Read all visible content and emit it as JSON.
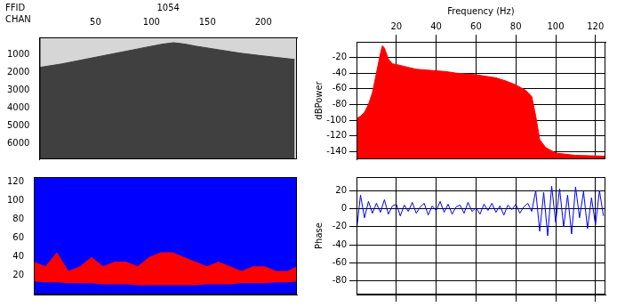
{
  "chart_data": [
    {
      "type": "area",
      "title": "1054",
      "x_label": "CHAN",
      "annotations": [
        {
          "text": "FFID"
        }
      ],
      "x": [
        0,
        20,
        40,
        60,
        80,
        100,
        110,
        120,
        130,
        140,
        160,
        180,
        200,
        228
      ],
      "values": [
        1700,
        1500,
        1250,
        1000,
        750,
        500,
        380,
        300,
        380,
        500,
        700,
        900,
        1050,
        1250
      ],
      "color": "#404040",
      "xlim": [
        0,
        230
      ],
      "xticks": [
        50,
        100,
        150,
        200
      ],
      "ylim": [
        0,
        6900
      ],
      "yticks": [
        1000,
        2000,
        3000,
        4000,
        5000,
        6000
      ],
      "grid": false,
      "tick_labels": true
    },
    {
      "type": "area",
      "x": [
        0,
        10,
        20,
        30,
        40,
        50,
        60,
        70,
        80,
        90,
        100,
        110,
        120,
        130,
        140,
        150,
        160,
        170,
        180,
        190,
        200,
        210,
        220,
        228
      ],
      "values": [
        35,
        30,
        45,
        25,
        30,
        40,
        30,
        35,
        35,
        30,
        40,
        45,
        45,
        40,
        35,
        30,
        35,
        30,
        25,
        30,
        30,
        25,
        25,
        30
      ],
      "lower": [
        14,
        13,
        13,
        12,
        12,
        12,
        11,
        11,
        11,
        10,
        10,
        10,
        10,
        10,
        10,
        11,
        11,
        11,
        12,
        12,
        12,
        13,
        13,
        14
      ],
      "color": "#ff0000",
      "xlim": [
        0,
        228
      ],
      "ylim": [
        0,
        125
      ],
      "yticks": [
        20,
        40,
        60,
        80,
        100,
        120
      ],
      "grid": false,
      "tick_labels": "y"
    },
    {
      "type": "area",
      "x_label": "Frequency (Hz)",
      "y_label": "dBPower",
      "x": [
        0,
        2,
        4,
        6,
        8,
        10,
        12,
        13,
        14,
        16,
        18,
        20,
        25,
        30,
        35,
        40,
        45,
        50,
        55,
        60,
        65,
        70,
        75,
        80,
        85,
        88,
        90,
        92,
        95,
        100,
        110,
        125
      ],
      "values": [
        -98,
        -95,
        -90,
        -80,
        -65,
        -40,
        -15,
        -5,
        -8,
        -22,
        -28,
        -29,
        -32,
        -35,
        -36,
        -37,
        -38,
        -40,
        -41,
        -42,
        -44,
        -46,
        -50,
        -55,
        -62,
        -70,
        -95,
        -125,
        -135,
        -142,
        -145,
        -146
      ],
      "color": "#ff0000",
      "xlim": [
        0,
        125
      ],
      "xticks": [
        20,
        40,
        60,
        80,
        100,
        120
      ],
      "ylim": [
        -150,
        0
      ],
      "yticks": [
        -140,
        -120,
        -100,
        -80,
        -60,
        -40,
        -20
      ],
      "grid": true,
      "tick_labels": true
    },
    {
      "type": "line",
      "y_label": "Phase",
      "x": [
        0,
        2,
        4,
        6,
        8,
        10,
        12,
        14,
        16,
        18,
        20,
        22,
        24,
        26,
        28,
        30,
        32,
        34,
        36,
        38,
        40,
        42,
        44,
        46,
        48,
        50,
        52,
        54,
        56,
        58,
        60,
        62,
        64,
        66,
        68,
        70,
        72,
        74,
        76,
        78,
        80,
        82,
        84,
        86,
        88,
        90,
        92,
        94,
        96,
        98,
        100,
        102,
        104,
        106,
        108,
        110,
        112,
        114,
        116,
        118,
        120,
        122,
        124
      ],
      "values": [
        -25,
        15,
        -10,
        8,
        -5,
        6,
        -4,
        10,
        -6,
        3,
        5,
        -8,
        4,
        -3,
        7,
        -5,
        2,
        6,
        -7,
        3,
        -2,
        8,
        -4,
        5,
        -6,
        2,
        4,
        -5,
        7,
        -3,
        1,
        -6,
        5,
        -2,
        6,
        -4,
        3,
        -7,
        4,
        -1,
        5,
        -5,
        2,
        6,
        -3,
        20,
        -25,
        18,
        -30,
        25,
        -15,
        22,
        -20,
        15,
        -28,
        24,
        -10,
        19,
        -22,
        12,
        -18,
        20,
        -8
      ],
      "color": "#0000ff",
      "xlim": [
        0,
        125
      ],
      "xticks": [
        20,
        40,
        60,
        80,
        100,
        120
      ],
      "ylim": [
        -95,
        35
      ],
      "yticks": [
        -80,
        -60,
        -40,
        -20,
        0,
        20
      ],
      "grid": true,
      "tick_labels": "y"
    }
  ]
}
